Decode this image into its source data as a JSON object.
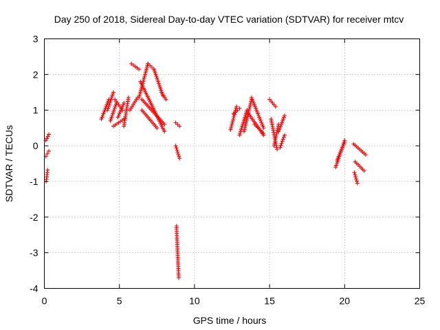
{
  "chart_data": {
    "type": "scatter",
    "title": "Day 250 of 2018, Sidereal Day-to-day VTEC variation (SDTVAR) for receiver mtcv",
    "xlabel": "GPS time / hours",
    "ylabel": "SDTVAR / TECUs",
    "xlim": [
      0,
      25
    ],
    "ylim": [
      -4,
      3
    ],
    "xticks": [
      "0",
      "5",
      "10",
      "15",
      "20",
      "25"
    ],
    "yticks": [
      "-4",
      "-3",
      "-2",
      "-1",
      "0",
      "1",
      "2",
      "3"
    ],
    "grid": true,
    "marker": "+",
    "color": "#ff0000",
    "series": [
      {
        "name": "SDTVAR",
        "segments": [
          {
            "x": [
              0.1,
              0.3
            ],
            "y": [
              0.15,
              0.32
            ]
          },
          {
            "x": [
              0.1,
              0.3
            ],
            "y": [
              -0.3,
              -0.15
            ]
          },
          {
            "x": [
              0.12,
              0.22
            ],
            "y": [
              -1.0,
              -0.68
            ]
          },
          {
            "x": [
              3.8,
              4.3
            ],
            "y": [
              0.75,
              1.3
            ]
          },
          {
            "x": [
              4.2,
              4.6
            ],
            "y": [
              1.0,
              1.5
            ]
          },
          {
            "x": [
              4.4,
              4.8
            ],
            "y": [
              0.7,
              1.2
            ]
          },
          {
            "x": [
              4.7,
              5.2
            ],
            "y": [
              1.3,
              1.0
            ]
          },
          {
            "x": [
              4.9,
              5.3
            ],
            "y": [
              0.8,
              1.2
            ]
          },
          {
            "x": [
              4.6,
              5.3
            ],
            "y": [
              0.55,
              0.75
            ]
          },
          {
            "x": [
              5.3,
              5.6
            ],
            "y": [
              0.55,
              1.35
            ]
          },
          {
            "x": [
              5.7,
              6.2
            ],
            "y": [
              1.0,
              1.35
            ]
          },
          {
            "x": [
              5.8,
              6.3
            ],
            "y": [
              2.3,
              2.15
            ]
          },
          {
            "x": [
              6.3,
              6.9
            ],
            "y": [
              1.35,
              2.3
            ]
          },
          {
            "x": [
              6.9,
              7.3
            ],
            "y": [
              2.3,
              2.15
            ]
          },
          {
            "x": [
              7.3,
              7.9
            ],
            "y": [
              2.15,
              1.4
            ]
          },
          {
            "x": [
              6.4,
              8.0
            ],
            "y": [
              1.8,
              0.4
            ]
          },
          {
            "x": [
              6.5,
              8.0
            ],
            "y": [
              1.3,
              0.6
            ]
          },
          {
            "x": [
              6.5,
              7.5
            ],
            "y": [
              1.0,
              0.5
            ]
          },
          {
            "x": [
              7.8,
              8.1
            ],
            "y": [
              1.5,
              1.3
            ]
          },
          {
            "x": [
              8.75,
              9.0
            ],
            "y": [
              0.65,
              0.55
            ]
          },
          {
            "x": [
              8.75,
              9.0
            ],
            "y": [
              0.0,
              -0.35
            ]
          },
          {
            "x": [
              8.8,
              8.95
            ],
            "y": [
              -2.25,
              -3.7
            ]
          },
          {
            "x": [
              12.4,
              12.8
            ],
            "y": [
              0.45,
              1.1
            ]
          },
          {
            "x": [
              12.6,
              13.0
            ],
            "y": [
              0.9,
              1.05
            ]
          },
          {
            "x": [
              13.0,
              13.5
            ],
            "y": [
              0.3,
              1.0
            ]
          },
          {
            "x": [
              13.3,
              13.8
            ],
            "y": [
              0.4,
              1.3
            ]
          },
          {
            "x": [
              13.8,
              14.6
            ],
            "y": [
              1.35,
              0.5
            ]
          },
          {
            "x": [
              13.6,
              14.6
            ],
            "y": [
              0.9,
              0.3
            ]
          },
          {
            "x": [
              14.0,
              14.6
            ],
            "y": [
              0.6,
              0.35
            ]
          },
          {
            "x": [
              15.0,
              15.4
            ],
            "y": [
              1.3,
              1.1
            ]
          },
          {
            "x": [
              15.1,
              15.5
            ],
            "y": [
              0.75,
              -0.1
            ]
          },
          {
            "x": [
              15.3,
              15.6
            ],
            "y": [
              0.0,
              0.6
            ]
          },
          {
            "x": [
              15.6,
              16.0
            ],
            "y": [
              0.4,
              0.85
            ]
          },
          {
            "x": [
              15.7,
              16.0
            ],
            "y": [
              -0.05,
              0.3
            ]
          },
          {
            "x": [
              19.4,
              20.0
            ],
            "y": [
              -0.6,
              0.15
            ]
          },
          {
            "x": [
              19.5,
              20.0
            ],
            "y": [
              -0.4,
              0.1
            ]
          },
          {
            "x": [
              20.6,
              21.4
            ],
            "y": [
              0.05,
              -0.25
            ]
          },
          {
            "x": [
              20.7,
              21.3
            ],
            "y": [
              -0.45,
              -0.7
            ]
          },
          {
            "x": [
              20.65,
              20.85
            ],
            "y": [
              -0.75,
              -1.05
            ]
          }
        ]
      }
    ]
  }
}
